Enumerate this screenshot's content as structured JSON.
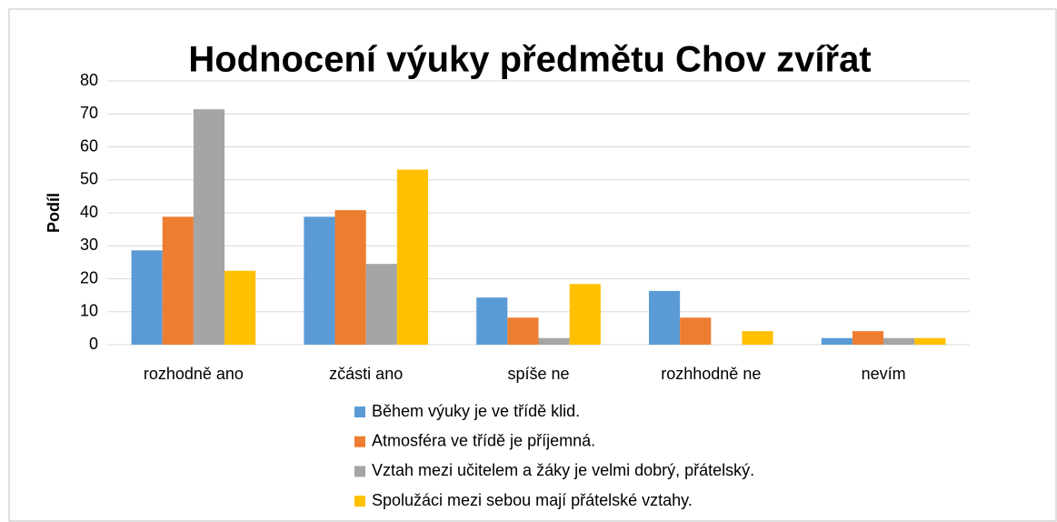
{
  "chart_data": {
    "type": "bar",
    "title": "Hodnocení výuky předmětu Chov zvířat",
    "y_label": "Podíl",
    "categories": [
      "rozhodně ano",
      "zčásti ano",
      "spíše ne",
      "rozhhodně ne",
      "nevím"
    ],
    "series": [
      {
        "name": "Během výuky je ve třídě klid.",
        "color": "#5b9bd5",
        "values": [
          28.6,
          38.8,
          14.3,
          16.3,
          2.0
        ]
      },
      {
        "name": "Atmosféra ve třídě je příjemná.",
        "color": "#ed7d31",
        "values": [
          38.8,
          40.8,
          8.2,
          8.2,
          4.1
        ]
      },
      {
        "name": "Vztah mezi učitelem a žáky je velmi dobrý, přátelský.",
        "color": "#a5a5a5",
        "values": [
          71.4,
          24.5,
          2.0,
          0,
          2.0
        ]
      },
      {
        "name": "Spolužáci mezi sebou mají přátelské vztahy.",
        "color": "#ffc000",
        "values": [
          22.4,
          53.1,
          18.4,
          4.1,
          2.0
        ]
      }
    ],
    "ylim": [
      0,
      80
    ],
    "yticks": [
      0,
      10,
      20,
      30,
      40,
      50,
      60,
      70,
      80
    ],
    "grid": true,
    "legend": "bottom"
  }
}
